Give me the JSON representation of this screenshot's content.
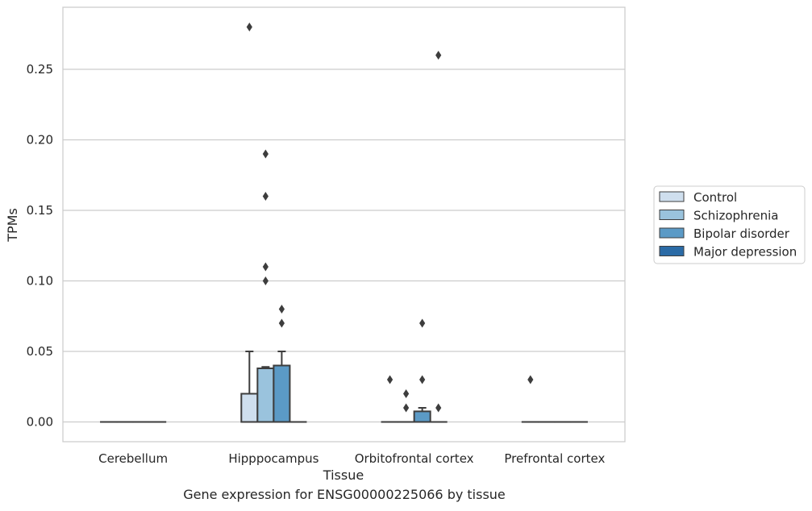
{
  "chart_data": {
    "type": "box",
    "title": "",
    "xlabel": "Tissue",
    "ylabel": "TPMs",
    "caption": "Gene expression for ENSG00000225066 by tissue",
    "categories": [
      "Cerebellum",
      "Hipppocampus",
      "Orbitofrontal cortex",
      "Prefrontal cortex"
    ],
    "ylim": [
      -0.014,
      0.294
    ],
    "yticks": [
      "0.00",
      "0.05",
      "0.10",
      "0.15",
      "0.20",
      "0.25"
    ],
    "grid": "horizontal",
    "legend_position": "right",
    "series": [
      {
        "name": "Control",
        "color": "#cfdfee",
        "boxes": [
          {
            "min": 0,
            "q1": 0,
            "median": 0,
            "q3": 0,
            "max": 0,
            "outliers": []
          },
          {
            "min": 0,
            "q1": 0,
            "median": 0,
            "q3": 0.02,
            "max": 0.05,
            "outliers": [
              0.28
            ]
          },
          {
            "min": 0,
            "q1": 0,
            "median": 0,
            "q3": 0,
            "max": 0,
            "outliers": [
              0.03
            ]
          },
          {
            "min": 0,
            "q1": 0,
            "median": 0,
            "q3": 0,
            "max": 0,
            "outliers": [
              0.03
            ]
          }
        ]
      },
      {
        "name": "Schizophrenia",
        "color": "#9ac3dd",
        "boxes": [
          {
            "min": 0,
            "q1": 0,
            "median": 0,
            "q3": 0,
            "max": 0,
            "outliers": []
          },
          {
            "min": 0,
            "q1": 0,
            "median": 0,
            "q3": 0.038,
            "max": 0.039,
            "outliers": [
              0.1,
              0.11,
              0.16,
              0.19
            ]
          },
          {
            "min": 0,
            "q1": 0,
            "median": 0,
            "q3": 0,
            "max": 0,
            "outliers": [
              0.01,
              0.02
            ]
          },
          {
            "min": 0,
            "q1": 0,
            "median": 0,
            "q3": 0,
            "max": 0,
            "outliers": []
          }
        ]
      },
      {
        "name": "Bipolar disorder",
        "color": "#5b9ac6",
        "boxes": [
          {
            "min": 0,
            "q1": 0,
            "median": 0,
            "q3": 0,
            "max": 0,
            "outliers": []
          },
          {
            "min": 0,
            "q1": 0,
            "median": 0,
            "q3": 0.04,
            "max": 0.05,
            "outliers": [
              0.07,
              0.08
            ]
          },
          {
            "min": 0,
            "q1": 0,
            "median": 0,
            "q3": 0.0075,
            "max": 0.01,
            "outliers": [
              0.03,
              0.07
            ]
          },
          {
            "min": 0,
            "q1": 0,
            "median": 0,
            "q3": 0,
            "max": 0,
            "outliers": []
          }
        ]
      },
      {
        "name": "Major depression",
        "color": "#2b6ba6",
        "boxes": [
          {
            "min": 0,
            "q1": 0,
            "median": 0,
            "q3": 0,
            "max": 0,
            "outliers": []
          },
          {
            "min": 0,
            "q1": 0,
            "median": 0,
            "q3": 0,
            "max": 0,
            "outliers": []
          },
          {
            "min": 0,
            "q1": 0,
            "median": 0,
            "q3": 0,
            "max": 0,
            "outliers": [
              0.01,
              0.26
            ]
          },
          {
            "min": 0,
            "q1": 0,
            "median": 0,
            "q3": 0,
            "max": 0,
            "outliers": []
          }
        ]
      }
    ]
  }
}
